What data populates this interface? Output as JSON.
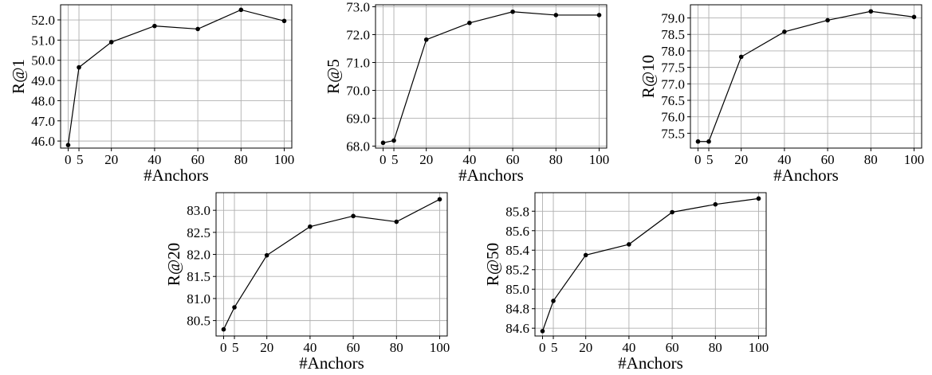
{
  "chart_data": [
    {
      "type": "line",
      "xlabel": "#Anchors",
      "ylabel": "R@1",
      "x": [
        0,
        5,
        20,
        40,
        60,
        80,
        100
      ],
      "values": [
        45.8,
        49.65,
        50.9,
        51.7,
        51.55,
        52.5,
        51.95
      ],
      "xticks": [
        0,
        5,
        20,
        40,
        60,
        80,
        100
      ],
      "yticks": [
        46.0,
        47.0,
        48.0,
        49.0,
        50.0,
        51.0,
        52.0
      ],
      "xlim": [
        -3.5,
        103.5
      ],
      "ylim": [
        45.65,
        52.75
      ],
      "y_decimals": 1,
      "grid": true
    },
    {
      "type": "line",
      "xlabel": "#Anchors",
      "ylabel": "R@5",
      "x": [
        0,
        5,
        20,
        40,
        60,
        80,
        100
      ],
      "values": [
        68.12,
        68.2,
        71.82,
        72.42,
        72.82,
        72.7,
        72.7
      ],
      "xticks": [
        0,
        5,
        20,
        40,
        60,
        80,
        100
      ],
      "yticks": [
        68.0,
        69.0,
        70.0,
        71.0,
        72.0,
        73.0
      ],
      "xlim": [
        -3.5,
        103.5
      ],
      "ylim": [
        67.93,
        73.07
      ],
      "y_decimals": 1,
      "grid": true
    },
    {
      "type": "line",
      "xlabel": "#Anchors",
      "ylabel": "R@10",
      "x": [
        0,
        5,
        20,
        40,
        60,
        80,
        100
      ],
      "values": [
        75.25,
        75.25,
        77.82,
        78.58,
        78.93,
        79.2,
        79.03
      ],
      "xticks": [
        0,
        5,
        20,
        40,
        60,
        80,
        100
      ],
      "yticks": [
        75.5,
        76.0,
        76.5,
        77.0,
        77.5,
        78.0,
        78.5,
        79.0
      ],
      "xlim": [
        -3.5,
        103.5
      ],
      "ylim": [
        75.05,
        79.4
      ],
      "y_decimals": 1,
      "grid": true
    },
    {
      "type": "line",
      "xlabel": "#Anchors",
      "ylabel": "R@20",
      "x": [
        0,
        5,
        20,
        40,
        60,
        80,
        100
      ],
      "values": [
        80.3,
        80.8,
        81.98,
        82.63,
        82.87,
        82.74,
        83.25
      ],
      "xticks": [
        0,
        5,
        20,
        40,
        60,
        80,
        100
      ],
      "yticks": [
        80.5,
        81.0,
        81.5,
        82.0,
        82.5,
        83.0
      ],
      "xlim": [
        -3.5,
        103.5
      ],
      "ylim": [
        80.15,
        83.4
      ],
      "y_decimals": 1,
      "grid": true
    },
    {
      "type": "line",
      "xlabel": "#Anchors",
      "ylabel": "R@50",
      "x": [
        0,
        5,
        20,
        40,
        60,
        80,
        100
      ],
      "values": [
        84.57,
        84.88,
        85.35,
        85.46,
        85.79,
        85.87,
        85.93
      ],
      "xticks": [
        0,
        5,
        20,
        40,
        60,
        80,
        100
      ],
      "yticks": [
        84.6,
        84.8,
        85.0,
        85.2,
        85.4,
        85.6,
        85.8
      ],
      "xlim": [
        -3.5,
        103.5
      ],
      "ylim": [
        84.52,
        85.99
      ],
      "y_decimals": 1,
      "grid": true
    }
  ]
}
